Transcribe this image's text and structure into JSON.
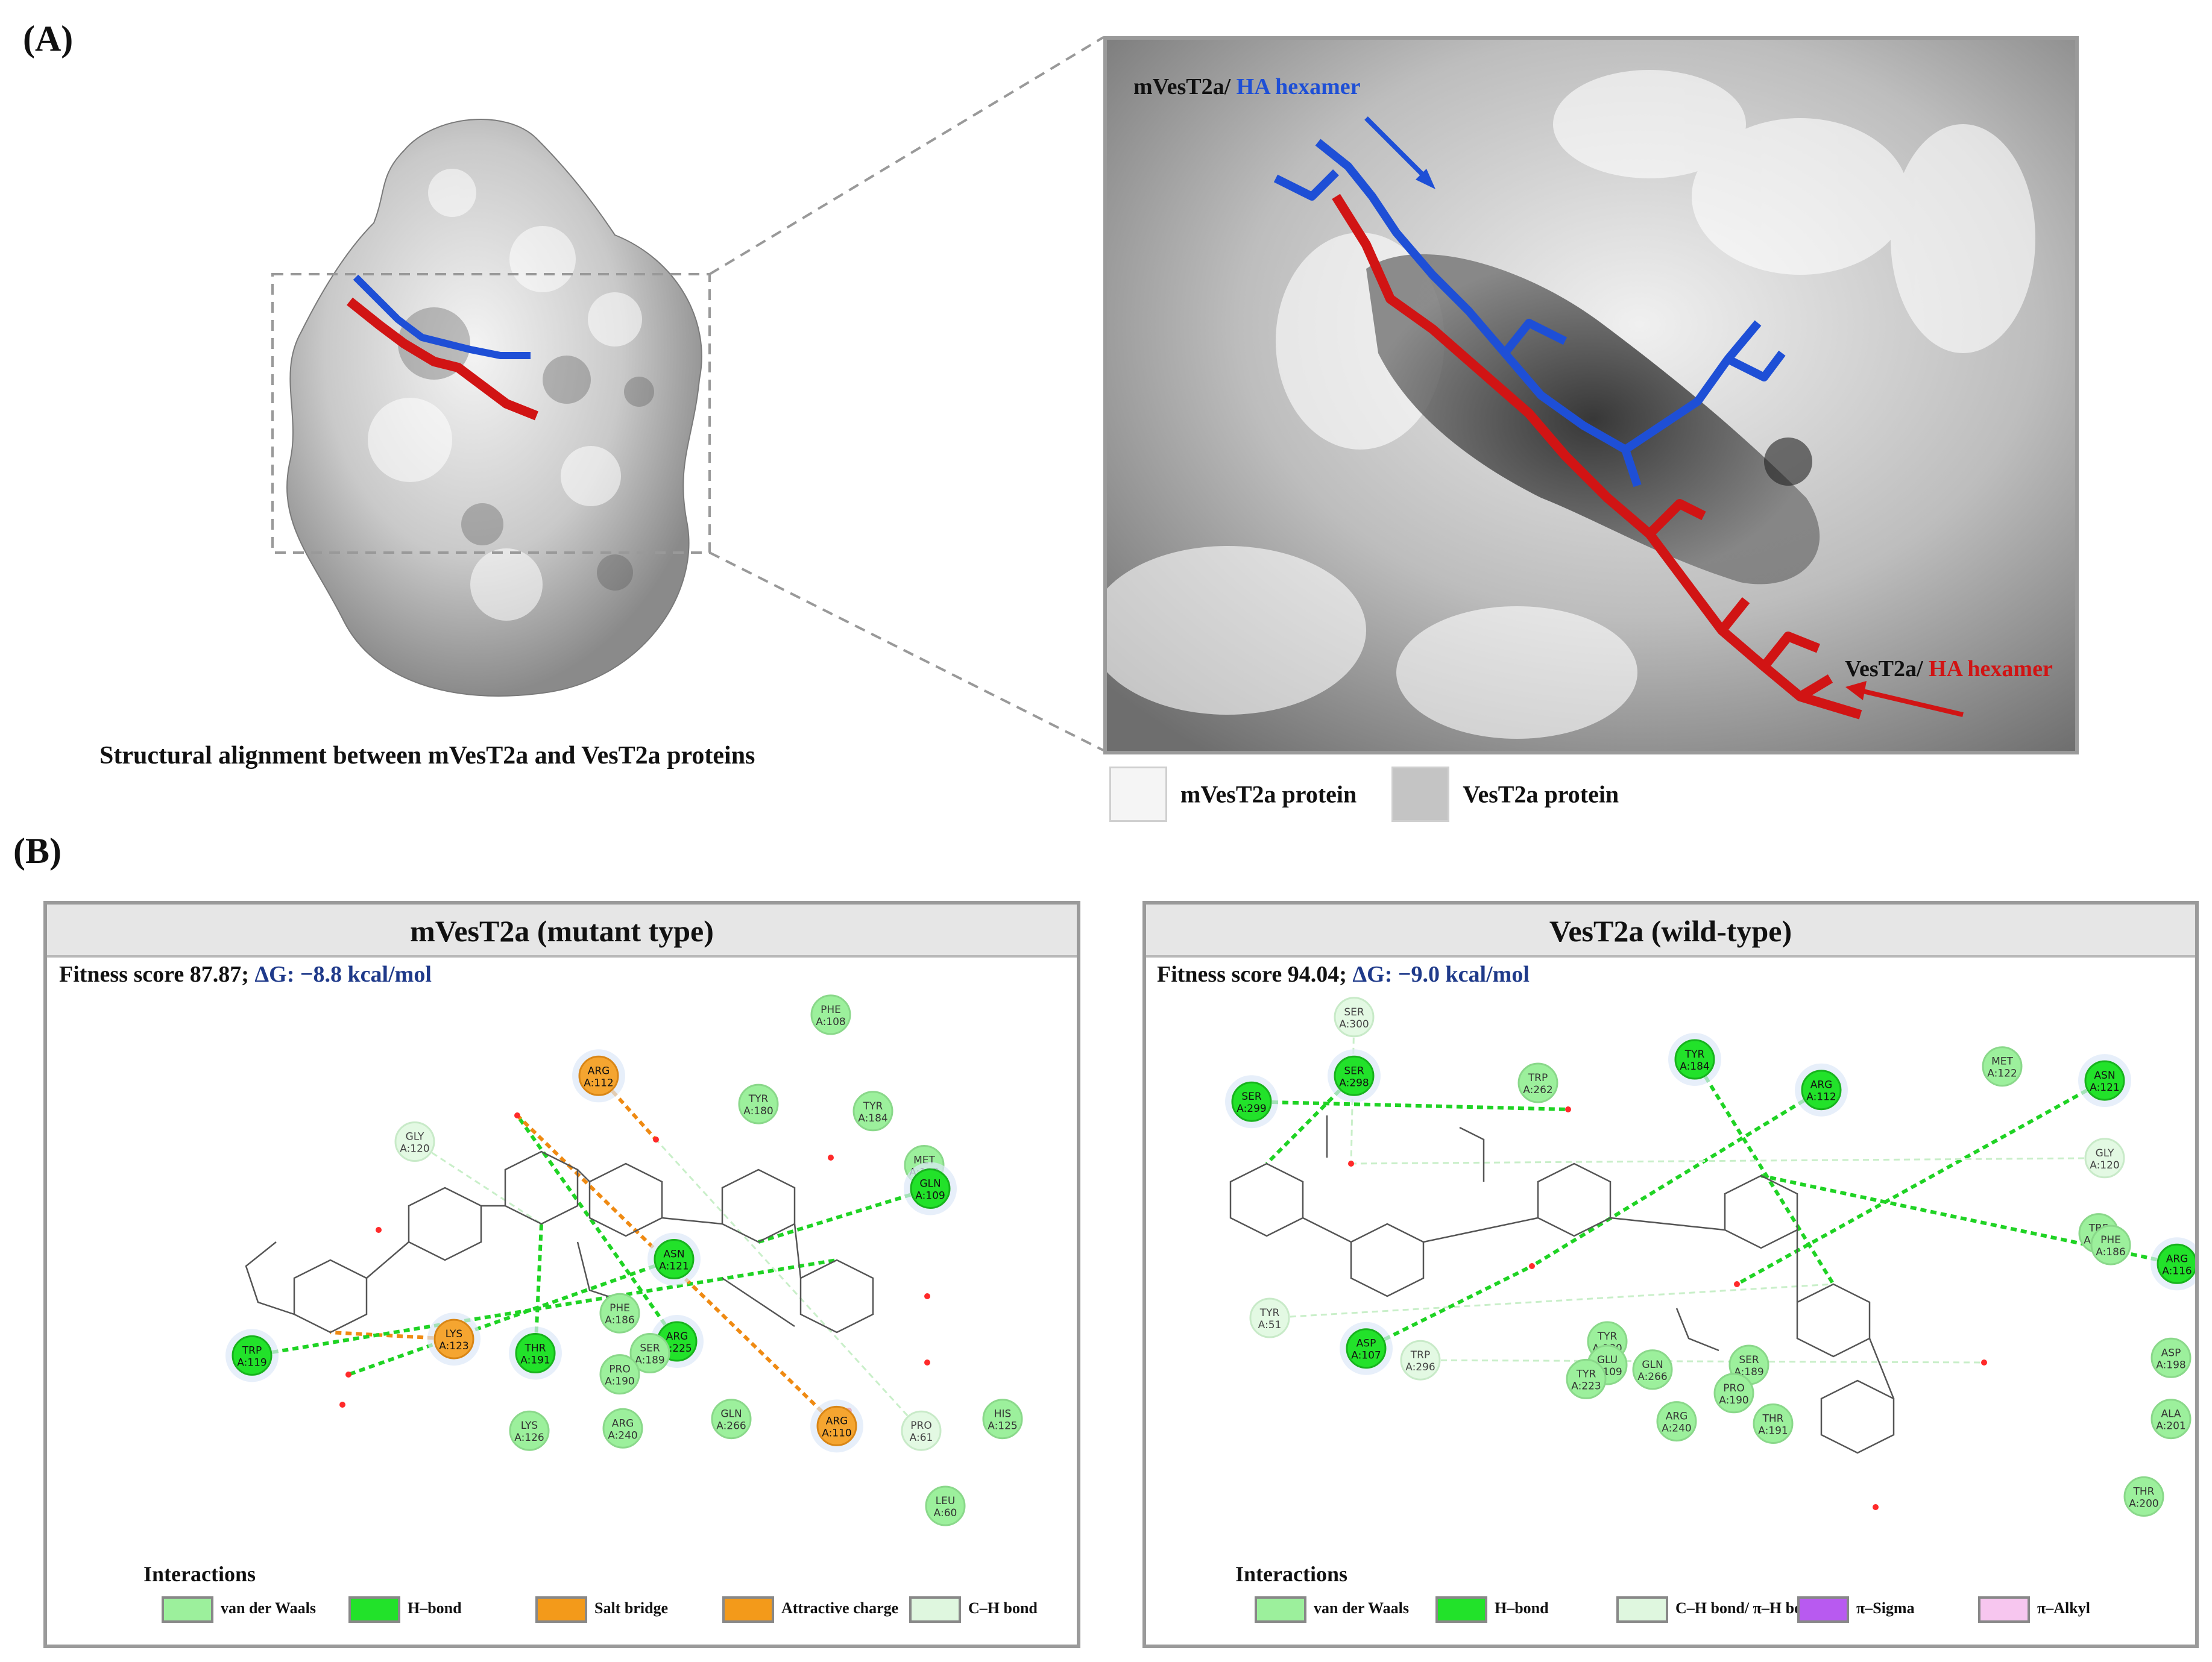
{
  "panel_a": {
    "letter": "(A)",
    "overview_caption": "Structural alignment between mVesT2a and VesT2a proteins",
    "zoom_label_mut_prefix": "mVesT2a/ ",
    "zoom_label_mut_ha": "HA hexamer",
    "zoom_label_wt_prefix": "VesT2a/ ",
    "zoom_label_wt_ha": "HA hexamer",
    "legend": [
      {
        "label": "mVesT2a protein",
        "color": "#f5f5f5"
      },
      {
        "label": "VesT2a protein",
        "color": "#c4c4c4"
      }
    ],
    "colors": {
      "mutant_ligand": "#1e4fd6",
      "wildtype_ligand": "#d11414"
    }
  },
  "panel_b": {
    "letter": "(B)",
    "mutant": {
      "title": "mVesT2a (mutant type)",
      "fitness_text": "Fitness score 87.87; ",
      "dg_text": "ΔG: −8.8 kcal/mol",
      "residues": [
        {
          "name": "PHE",
          "id": "A:108",
          "type": "vdw"
        },
        {
          "name": "ARG",
          "id": "A:112",
          "type": "salt"
        },
        {
          "name": "TYR",
          "id": "A:180",
          "type": "vdw"
        },
        {
          "name": "TYR",
          "id": "A:184",
          "type": "vdw"
        },
        {
          "name": "GLY",
          "id": "A:120",
          "type": "ch"
        },
        {
          "name": "MET",
          "id": "A:122",
          "type": "vdw"
        },
        {
          "name": "GLN",
          "id": "A:109",
          "type": "hbond"
        },
        {
          "name": "ASN",
          "id": "A:121",
          "type": "hbond"
        },
        {
          "name": "PHE",
          "id": "A:186",
          "type": "vdw"
        },
        {
          "name": "ARG",
          "id": "A:225",
          "type": "hbond"
        },
        {
          "name": "SER",
          "id": "A:189",
          "type": "vdw"
        },
        {
          "name": "PRO",
          "id": "A:190",
          "type": "vdw"
        },
        {
          "name": "LYS",
          "id": "A:123",
          "type": "salt"
        },
        {
          "name": "THR",
          "id": "A:191",
          "type": "hbond"
        },
        {
          "name": "TRP",
          "id": "A:119",
          "type": "hbond"
        },
        {
          "name": "LYS",
          "id": "A:126",
          "type": "vdw"
        },
        {
          "name": "ARG",
          "id": "A:240",
          "type": "vdw"
        },
        {
          "name": "GLN",
          "id": "A:266",
          "type": "vdw"
        },
        {
          "name": "ARG",
          "id": "A:110",
          "type": "salt"
        },
        {
          "name": "PRO",
          "id": "A:61",
          "type": "ch"
        },
        {
          "name": "HIS",
          "id": "A:125",
          "type": "vdw"
        },
        {
          "name": "LEU",
          "id": "A:60",
          "type": "vdw"
        }
      ],
      "legend_title": "Interactions",
      "legend": [
        {
          "label": "van der Waals",
          "color": "#9cf09c"
        },
        {
          "label": "H–bond",
          "color": "#22e22a"
        },
        {
          "label": "Salt bridge",
          "color": "#f39a1a"
        },
        {
          "label": "Attractive charge",
          "color": "#f39a1a"
        },
        {
          "label": "C–H bond",
          "color": "#dff7df"
        }
      ]
    },
    "wildtype": {
      "title": "VesT2a (wild-type)",
      "fitness_text": "Fitness score 94.04; ",
      "dg_text": "ΔG: −9.0 kcal/mol",
      "residues": [
        {
          "name": "SER",
          "id": "A:300",
          "type": "ch"
        },
        {
          "name": "SER",
          "id": "A:298",
          "type": "hbond"
        },
        {
          "name": "SER",
          "id": "A:299",
          "type": "hbond"
        },
        {
          "name": "TRP",
          "id": "A:262",
          "type": "vdw"
        },
        {
          "name": "TYR",
          "id": "A:184",
          "type": "hbond"
        },
        {
          "name": "ARG",
          "id": "A:112",
          "type": "hbond"
        },
        {
          "name": "MET",
          "id": "A:122",
          "type": "vdw"
        },
        {
          "name": "ASN",
          "id": "A:121",
          "type": "hbond"
        },
        {
          "name": "GLY",
          "id": "A:120",
          "type": "ch"
        },
        {
          "name": "TRP",
          "id": "A:119",
          "type": "vdw"
        },
        {
          "name": "PHE",
          "id": "A:186",
          "type": "vdw"
        },
        {
          "name": "ARG",
          "id": "A:116",
          "type": "hbond"
        },
        {
          "name": "TYR",
          "id": "A:51",
          "type": "ch"
        },
        {
          "name": "ASP",
          "id": "A:107",
          "type": "hbond"
        },
        {
          "name": "TRP",
          "id": "A:296",
          "type": "ch"
        },
        {
          "name": "TYR",
          "id": "A:180",
          "type": "vdw"
        },
        {
          "name": "GLU",
          "id": "A:109",
          "type": "vdw"
        },
        {
          "name": "TYR",
          "id": "A:223",
          "type": "vdw"
        },
        {
          "name": "GLN",
          "id": "A:266",
          "type": "vdw"
        },
        {
          "name": "SER",
          "id": "A:189",
          "type": "vdw"
        },
        {
          "name": "PRO",
          "id": "A:190",
          "type": "vdw"
        },
        {
          "name": "ARG",
          "id": "A:240",
          "type": "vdw"
        },
        {
          "name": "THR",
          "id": "A:191",
          "type": "vdw"
        },
        {
          "name": "ASP",
          "id": "A:198",
          "type": "vdw"
        },
        {
          "name": "ALA",
          "id": "A:201",
          "type": "vdw"
        },
        {
          "name": "THR",
          "id": "A:200",
          "type": "vdw"
        }
      ],
      "legend_title": "Interactions",
      "legend": [
        {
          "label": "van der Waals",
          "color": "#9cf09c"
        },
        {
          "label": "H–bond",
          "color": "#22e22a"
        },
        {
          "label": "C–H bond/ π–H bond",
          "color": "#dff7df"
        },
        {
          "label": "π–Sigma",
          "color": "#b85af0"
        },
        {
          "label": "π–Alkyl",
          "color": "#f7c6ef"
        }
      ]
    }
  }
}
